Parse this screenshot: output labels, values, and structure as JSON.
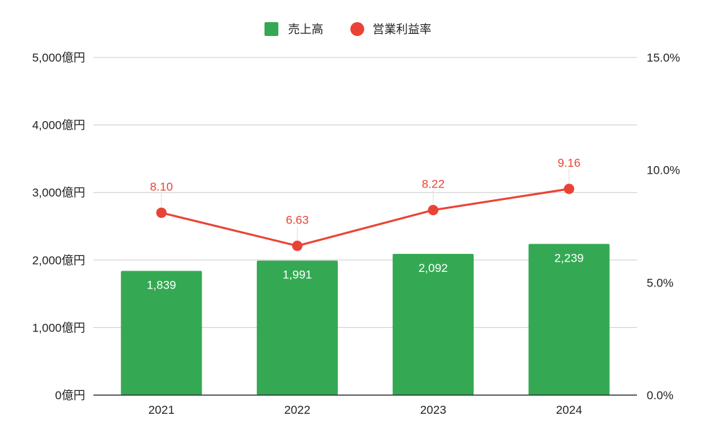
{
  "colors": {
    "bar": "#34a853",
    "line": "#ea4335",
    "grid": "#cccccc",
    "axis": "#333333"
  },
  "legend": {
    "position": "top-center",
    "items": [
      {
        "label": "売上高",
        "marker": "square",
        "color": "#34a853"
      },
      {
        "label": "営業利益率",
        "marker": "circle",
        "color": "#ea4335"
      }
    ]
  },
  "chart_data": {
    "type": "bar",
    "categories": [
      "2021",
      "2022",
      "2023",
      "2024"
    ],
    "series": [
      {
        "name": "売上高",
        "type": "bar",
        "axis": "left",
        "values": [
          1839,
          1991,
          2092,
          2239
        ],
        "labels": [
          "1,839",
          "1,991",
          "2,092",
          "2,239"
        ]
      },
      {
        "name": "営業利益率",
        "type": "line",
        "axis": "right",
        "values": [
          8.1,
          6.63,
          8.22,
          9.16
        ],
        "labels": [
          "8.10",
          "6.63",
          "8.22",
          "9.16"
        ]
      }
    ],
    "y_left": {
      "min": 0,
      "max": 5000,
      "ticks": [
        0,
        1000,
        2000,
        3000,
        4000,
        5000
      ],
      "tick_labels": [
        "0億円",
        "1,000億円",
        "2,000億円",
        "3,000億円",
        "4,000億円",
        "5,000億円"
      ]
    },
    "y_right": {
      "min": 0,
      "max": 15,
      "ticks": [
        0,
        5,
        10,
        15
      ],
      "tick_labels": [
        "0.0%",
        "5.0%",
        "10.0%",
        "15.0%"
      ]
    },
    "grid": true
  }
}
